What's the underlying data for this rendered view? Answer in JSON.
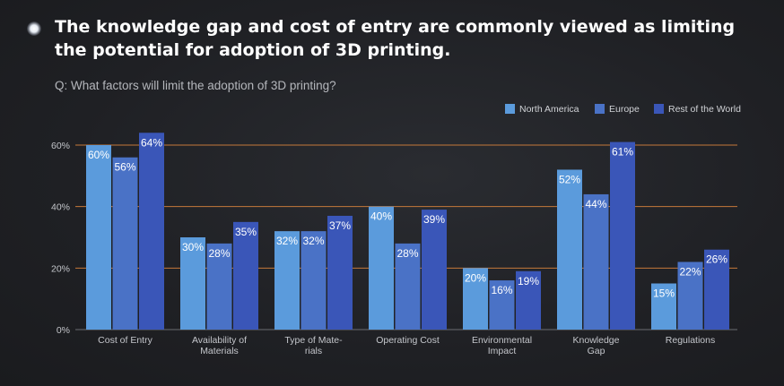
{
  "headline": "The knowledge gap and cost of entry are commonly viewed as limiting the potential for adoption of 3D printing.",
  "chart_data": {
    "type": "bar",
    "title": "Q: What factors will limit the adoption of 3D printing?",
    "categories": [
      [
        "Cost of Entry"
      ],
      [
        "Availability of",
        "Materials"
      ],
      [
        "Type of Mate-",
        "rials"
      ],
      [
        "Operating Cost"
      ],
      [
        "Environmental",
        "Impact"
      ],
      [
        "Knowledge",
        "Gap"
      ],
      [
        "Regulations"
      ]
    ],
    "series": [
      {
        "name": "North America",
        "color": "#5b9bdc",
        "values": [
          60,
          30,
          32,
          40,
          20,
          52,
          15
        ]
      },
      {
        "name": "Europe",
        "color": "#4a72c6",
        "values": [
          56,
          28,
          32,
          28,
          16,
          44,
          22
        ]
      },
      {
        "name": "Rest of the World",
        "color": "#3a56b8",
        "values": [
          64,
          35,
          37,
          39,
          19,
          61,
          26
        ]
      }
    ],
    "ylim": [
      0,
      60
    ],
    "yticks": [
      0,
      20,
      40,
      60
    ],
    "ytick_suffix": "%",
    "value_suffix": "%",
    "xlabel": "",
    "ylabel": "",
    "grid": true,
    "grid_color": "#c5783a",
    "legend_position": "top-right"
  }
}
